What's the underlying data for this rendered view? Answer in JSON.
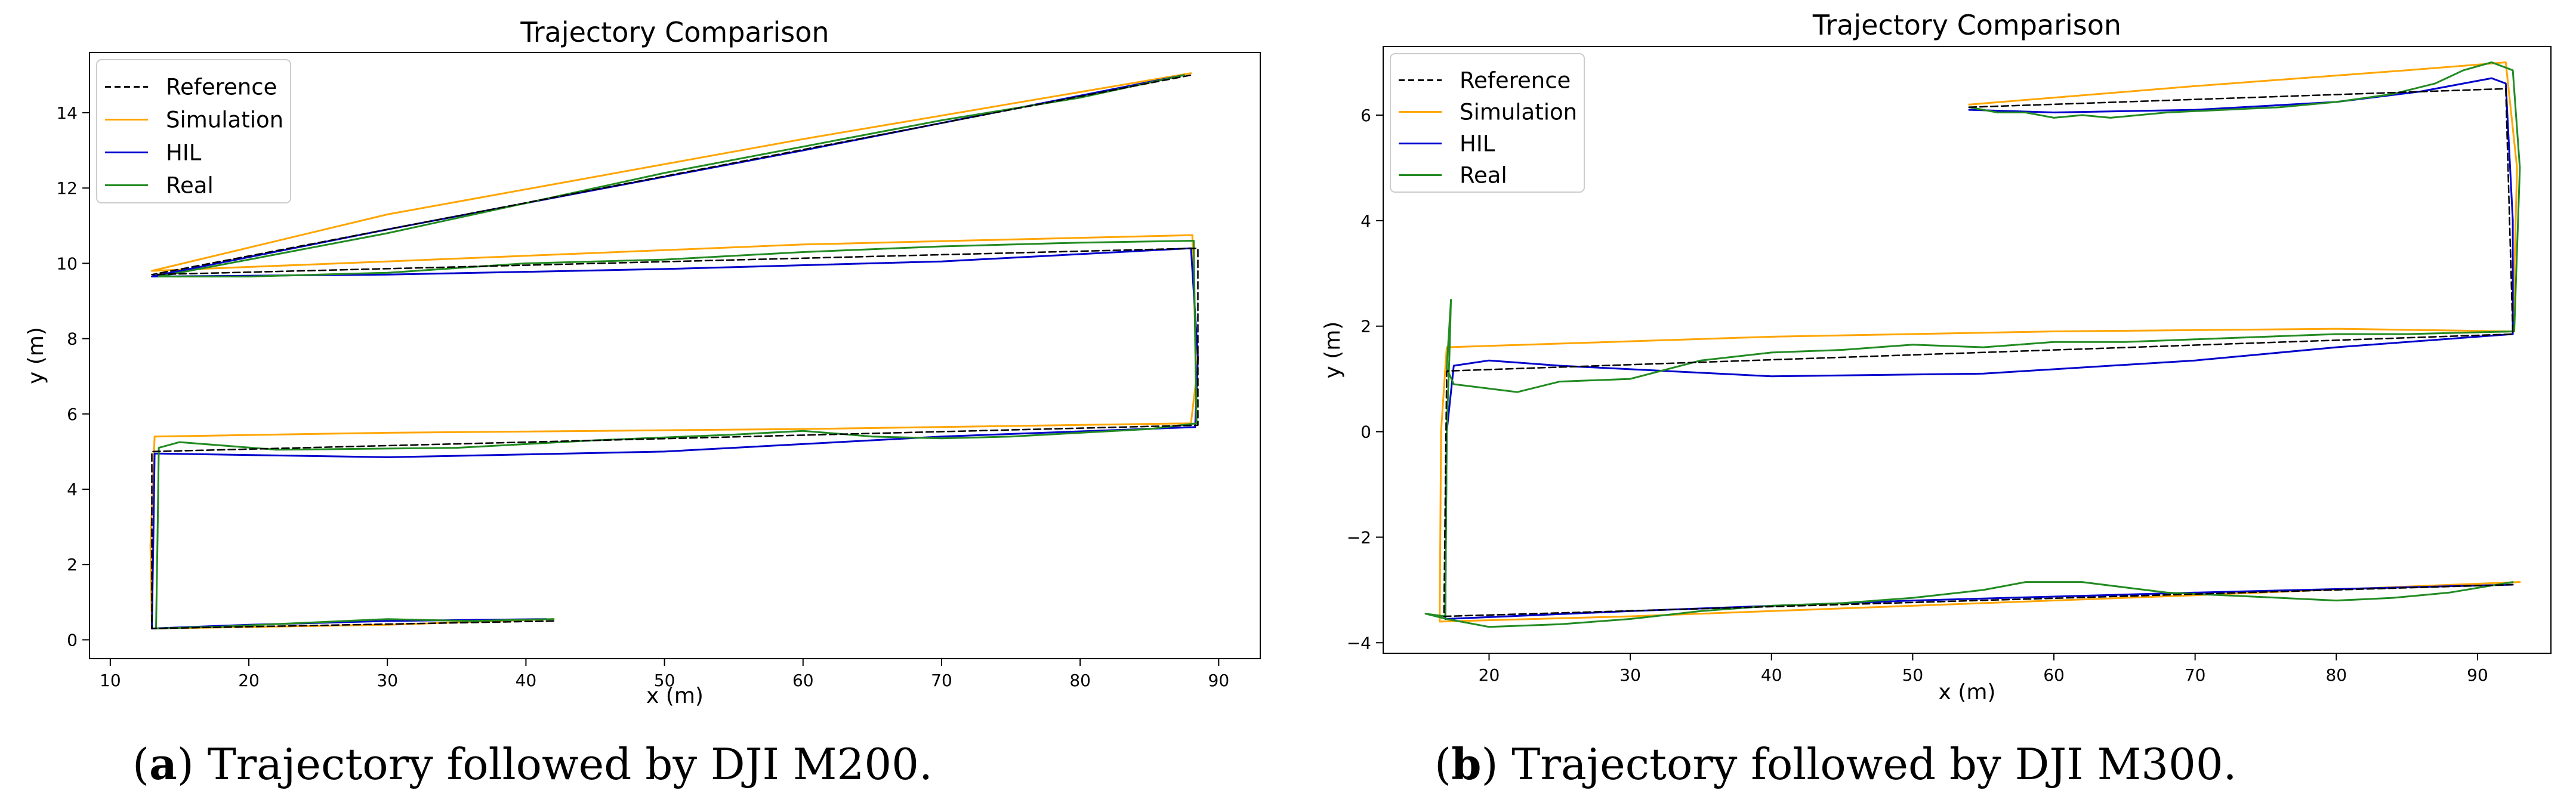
{
  "chart_data": [
    {
      "type": "line",
      "title": "Trajectory Comparison",
      "xlabel": "x (m)",
      "ylabel": "y (m)",
      "xlim": [
        8.5,
        93
      ],
      "ylim": [
        -0.5,
        15.6
      ],
      "xticks": [
        10,
        20,
        30,
        40,
        50,
        60,
        70,
        80,
        90
      ],
      "yticks": [
        0,
        2,
        4,
        6,
        8,
        10,
        12,
        14
      ],
      "legend": "top-left",
      "grid": false,
      "series": [
        {
          "name": "Reference",
          "color": "#000000",
          "dash": "dashed",
          "points": [
            [
              42,
              0.5
            ],
            [
              13,
              0.3
            ],
            [
              13,
              5.0
            ],
            [
              88.5,
              5.7
            ],
            [
              88.5,
              10.4
            ],
            [
              13,
              9.7
            ],
            [
              88,
              15.0
            ]
          ]
        },
        {
          "name": "Simulation",
          "color": "#FFA500",
          "points": [
            [
              42,
              0.55
            ],
            [
              30,
              0.4
            ],
            [
              13,
              0.3
            ],
            [
              12.9,
              2.5
            ],
            [
              13.2,
              5.4
            ],
            [
              30,
              5.5
            ],
            [
              60,
              5.6
            ],
            [
              88,
              5.75
            ],
            [
              88.4,
              7
            ],
            [
              88.1,
              10.75
            ],
            [
              60,
              10.5
            ],
            [
              30,
              10.05
            ],
            [
              13,
              9.8
            ],
            [
              30,
              11.3
            ],
            [
              60,
              13.3
            ],
            [
              88,
              15.05
            ]
          ]
        },
        {
          "name": "HIL",
          "color": "#0000CC",
          "points": [
            [
              41.5,
              0.55
            ],
            [
              30,
              0.5
            ],
            [
              20,
              0.4
            ],
            [
              13,
              0.3
            ],
            [
              13.1,
              2.5
            ],
            [
              13.2,
              4.95
            ],
            [
              30,
              4.85
            ],
            [
              50,
              5.0
            ],
            [
              70,
              5.4
            ],
            [
              88.3,
              5.65
            ],
            [
              88.5,
              7.5
            ],
            [
              88,
              10.4
            ],
            [
              70,
              10.05
            ],
            [
              50,
              9.85
            ],
            [
              30,
              9.7
            ],
            [
              13,
              9.65
            ],
            [
              30,
              10.9
            ],
            [
              60,
              13.0
            ],
            [
              87.5,
              15.0
            ]
          ]
        },
        {
          "name": "Real",
          "color": "#228B22",
          "points": [
            [
              42,
              0.55
            ],
            [
              36,
              0.5
            ],
            [
              30,
              0.55
            ],
            [
              24,
              0.45
            ],
            [
              18,
              0.35
            ],
            [
              13.3,
              0.3
            ],
            [
              13.4,
              2.5
            ],
            [
              13.5,
              5.1
            ],
            [
              15,
              5.25
            ],
            [
              22,
              5.05
            ],
            [
              35,
              5.1
            ],
            [
              45,
              5.3
            ],
            [
              55,
              5.45
            ],
            [
              60,
              5.55
            ],
            [
              65,
              5.4
            ],
            [
              70,
              5.35
            ],
            [
              75,
              5.4
            ],
            [
              80,
              5.5
            ],
            [
              85,
              5.6
            ],
            [
              88.4,
              5.75
            ],
            [
              88.3,
              8
            ],
            [
              88.2,
              10.6
            ],
            [
              80,
              10.55
            ],
            [
              70,
              10.45
            ],
            [
              60,
              10.3
            ],
            [
              50,
              10.1
            ],
            [
              40,
              10.0
            ],
            [
              30,
              9.75
            ],
            [
              20,
              9.65
            ],
            [
              13.5,
              9.65
            ],
            [
              20,
              10.1
            ],
            [
              30,
              10.8
            ],
            [
              40,
              11.6
            ],
            [
              50,
              12.4
            ],
            [
              60,
              13.1
            ],
            [
              70,
              13.8
            ],
            [
              80,
              14.4
            ],
            [
              87.5,
              15.0
            ]
          ]
        }
      ]
    },
    {
      "type": "line",
      "title": "Trajectory Comparison",
      "xlabel": "x (m)",
      "ylabel": "y (m)",
      "xlim": [
        12.5,
        95.2
      ],
      "ylim": [
        -4.2,
        7.3
      ],
      "xticks": [
        20,
        30,
        40,
        50,
        60,
        70,
        80,
        90
      ],
      "yticks": [
        -4,
        -2,
        0,
        2,
        4,
        6
      ],
      "legend": "top-left",
      "grid": false,
      "series": [
        {
          "name": "Reference",
          "color": "#000000",
          "dash": "dashed",
          "points": [
            [
              54,
              6.15
            ],
            [
              92,
              6.5
            ],
            [
              92.5,
              1.85
            ],
            [
              17,
              1.15
            ],
            [
              16.8,
              -3.5
            ],
            [
              92.5,
              -2.9
            ]
          ]
        },
        {
          "name": "Simulation",
          "color": "#FFA500",
          "points": [
            [
              54,
              6.2
            ],
            [
              70,
              6.55
            ],
            [
              85,
              6.85
            ],
            [
              92,
              7.0
            ],
            [
              92.8,
              5
            ],
            [
              92.5,
              1.9
            ],
            [
              80,
              1.95
            ],
            [
              60,
              1.9
            ],
            [
              40,
              1.8
            ],
            [
              17,
              1.6
            ],
            [
              16.6,
              0
            ],
            [
              16.5,
              -3.6
            ],
            [
              30,
              -3.5
            ],
            [
              50,
              -3.3
            ],
            [
              70,
              -3.1
            ],
            [
              93,
              -2.85
            ]
          ]
        },
        {
          "name": "HIL",
          "color": "#0000CC",
          "points": [
            [
              54,
              6.1
            ],
            [
              60,
              6.05
            ],
            [
              70,
              6.1
            ],
            [
              80,
              6.25
            ],
            [
              86,
              6.45
            ],
            [
              91,
              6.7
            ],
            [
              92,
              6.6
            ],
            [
              92.5,
              4
            ],
            [
              92.5,
              1.85
            ],
            [
              80,
              1.6
            ],
            [
              70,
              1.35
            ],
            [
              55,
              1.1
            ],
            [
              40,
              1.05
            ],
            [
              25,
              1.25
            ],
            [
              20,
              1.35
            ],
            [
              17.5,
              1.25
            ],
            [
              17,
              0
            ],
            [
              16.9,
              -3.55
            ],
            [
              30,
              -3.4
            ],
            [
              50,
              -3.2
            ],
            [
              70,
              -3.05
            ],
            [
              92.5,
              -2.9
            ]
          ]
        },
        {
          "name": "Real",
          "color": "#228B22",
          "points": [
            [
              54,
              6.15
            ],
            [
              56,
              6.05
            ],
            [
              58,
              6.05
            ],
            [
              60,
              5.95
            ],
            [
              62,
              6.0
            ],
            [
              64,
              5.95
            ],
            [
              68,
              6.05
            ],
            [
              72,
              6.1
            ],
            [
              76,
              6.15
            ],
            [
              80,
              6.25
            ],
            [
              84,
              6.4
            ],
            [
              87,
              6.6
            ],
            [
              89,
              6.85
            ],
            [
              91,
              7.0
            ],
            [
              92.5,
              6.85
            ],
            [
              93,
              5
            ],
            [
              92.6,
              1.9
            ],
            [
              85,
              1.85
            ],
            [
              80,
              1.85
            ],
            [
              75,
              1.8
            ],
            [
              70,
              1.75
            ],
            [
              65,
              1.7
            ],
            [
              60,
              1.7
            ],
            [
              55,
              1.6
            ],
            [
              50,
              1.65
            ],
            [
              45,
              1.55
            ],
            [
              40,
              1.5
            ],
            [
              35,
              1.35
            ],
            [
              30,
              1.0
            ],
            [
              25,
              0.95
            ],
            [
              22,
              0.75
            ],
            [
              19,
              0.85
            ],
            [
              17.5,
              0.9
            ],
            [
              17,
              1.2
            ],
            [
              17.3,
              2.5
            ],
            [
              17.2,
              1.5
            ],
            [
              17,
              0
            ],
            [
              16.9,
              -3.5
            ],
            [
              15.5,
              -3.45
            ],
            [
              17,
              -3.55
            ],
            [
              20,
              -3.7
            ],
            [
              25,
              -3.65
            ],
            [
              30,
              -3.55
            ],
            [
              35,
              -3.4
            ],
            [
              40,
              -3.3
            ],
            [
              45,
              -3.25
            ],
            [
              50,
              -3.15
            ],
            [
              55,
              -3.0
            ],
            [
              58,
              -2.85
            ],
            [
              62,
              -2.85
            ],
            [
              65,
              -2.95
            ],
            [
              68,
              -3.05
            ],
            [
              72,
              -3.1
            ],
            [
              76,
              -3.15
            ],
            [
              80,
              -3.2
            ],
            [
              84,
              -3.15
            ],
            [
              88,
              -3.05
            ],
            [
              92.5,
              -2.85
            ]
          ]
        }
      ]
    }
  ],
  "captions": [
    {
      "label": "(a)",
      "text": "Trajectory followed by DJI M200."
    },
    {
      "label": "(b)",
      "text": "Trajectory followed by DJI M300."
    }
  ]
}
